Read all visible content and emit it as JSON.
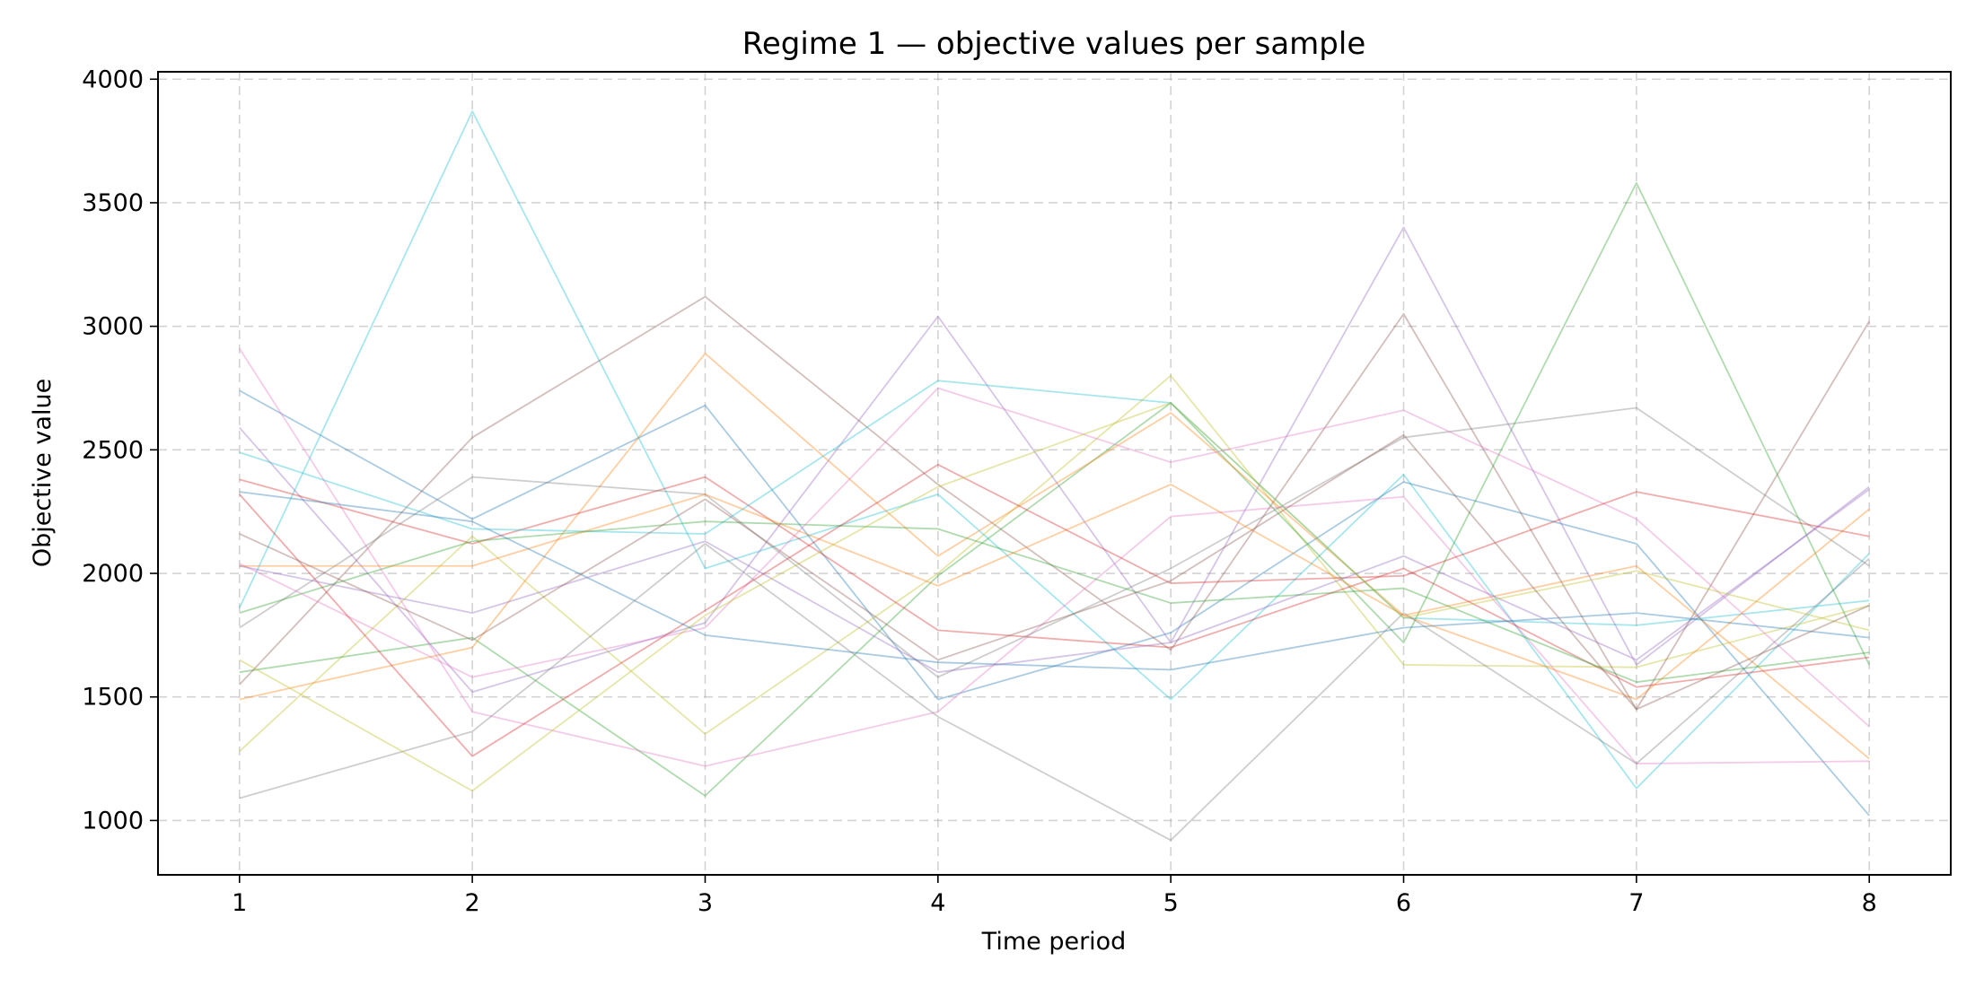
{
  "chart_data": {
    "type": "line",
    "title": "Regime 1 — objective values per sample",
    "xlabel": "Time period",
    "ylabel": "Objective value",
    "x": [
      1,
      2,
      3,
      4,
      5,
      6,
      7,
      8
    ],
    "xlim": [
      0.65,
      8.35
    ],
    "ylim": [
      780,
      4030
    ],
    "yticks": [
      1000,
      1500,
      2000,
      2500,
      3000,
      3500,
      4000
    ],
    "grid": true,
    "series": [
      {
        "color": "#17becf",
        "values": [
          1860,
          3870,
          2020,
          2320,
          1490,
          2400,
          1130,
          2080
        ]
      },
      {
        "color": "#1f77b4",
        "values": [
          2740,
          2220,
          2680,
          1490,
          1760,
          2370,
          2120,
          1020
        ]
      },
      {
        "color": "#bcbd22",
        "values": [
          1280,
          2150,
          1350,
          2000,
          2800,
          1630,
          1620,
          1870
        ]
      },
      {
        "color": "#2ca02c",
        "values": [
          1600,
          1740,
          1100,
          1990,
          2690,
          1720,
          3580,
          1630
        ]
      },
      {
        "color": "#9467bd",
        "values": [
          2590,
          1520,
          1800,
          3040,
          1720,
          3400,
          1630,
          2350
        ]
      },
      {
        "color": "#8c564b",
        "values": [
          1550,
          2550,
          3120,
          2360,
          1690,
          3050,
          1450,
          3020
        ]
      },
      {
        "color": "#ff7f0e",
        "values": [
          1490,
          1700,
          2890,
          2070,
          2650,
          1830,
          2030,
          1250
        ]
      },
      {
        "color": "#e377c2",
        "values": [
          2910,
          1440,
          1220,
          1440,
          2230,
          2310,
          1230,
          1240
        ]
      },
      {
        "color": "#d62728",
        "values": [
          2380,
          2120,
          2390,
          1770,
          1700,
          2020,
          1540,
          1660
        ]
      },
      {
        "color": "#7f7f7f",
        "values": [
          1780,
          2390,
          2320,
          1580,
          2020,
          2550,
          2670,
          2030
        ]
      },
      {
        "color": "#17becf",
        "values": [
          2490,
          2180,
          2160,
          2780,
          2690,
          1820,
          1790,
          1890
        ]
      },
      {
        "color": "#2ca02c",
        "values": [
          1840,
          2130,
          2210,
          2180,
          1880,
          1940,
          1560,
          1680
        ]
      },
      {
        "color": "#e377c2",
        "values": [
          2040,
          1580,
          1780,
          2750,
          2450,
          2660,
          2220,
          1380
        ]
      },
      {
        "color": "#ff7f0e",
        "values": [
          2030,
          2030,
          2320,
          1950,
          2360,
          1830,
          1490,
          2260
        ]
      },
      {
        "color": "#d62728",
        "values": [
          2320,
          1260,
          1850,
          2440,
          1960,
          1990,
          2330,
          2150
        ]
      },
      {
        "color": "#1f77b4",
        "values": [
          2330,
          2210,
          1750,
          1640,
          1610,
          1780,
          1840,
          1740
        ]
      },
      {
        "color": "#7f7f7f",
        "values": [
          1090,
          1360,
          2120,
          1420,
          920,
          1840,
          1230,
          2060
        ]
      },
      {
        "color": "#9467bd",
        "values": [
          2030,
          1840,
          2130,
          1600,
          1720,
          2070,
          1650,
          2340
        ]
      },
      {
        "color": "#bcbd22",
        "values": [
          1650,
          1120,
          1830,
          2350,
          2690,
          1820,
          2010,
          1770
        ]
      },
      {
        "color": "#8c564b",
        "values": [
          2160,
          1730,
          2300,
          1650,
          1970,
          2560,
          1450,
          1870
        ]
      }
    ]
  }
}
